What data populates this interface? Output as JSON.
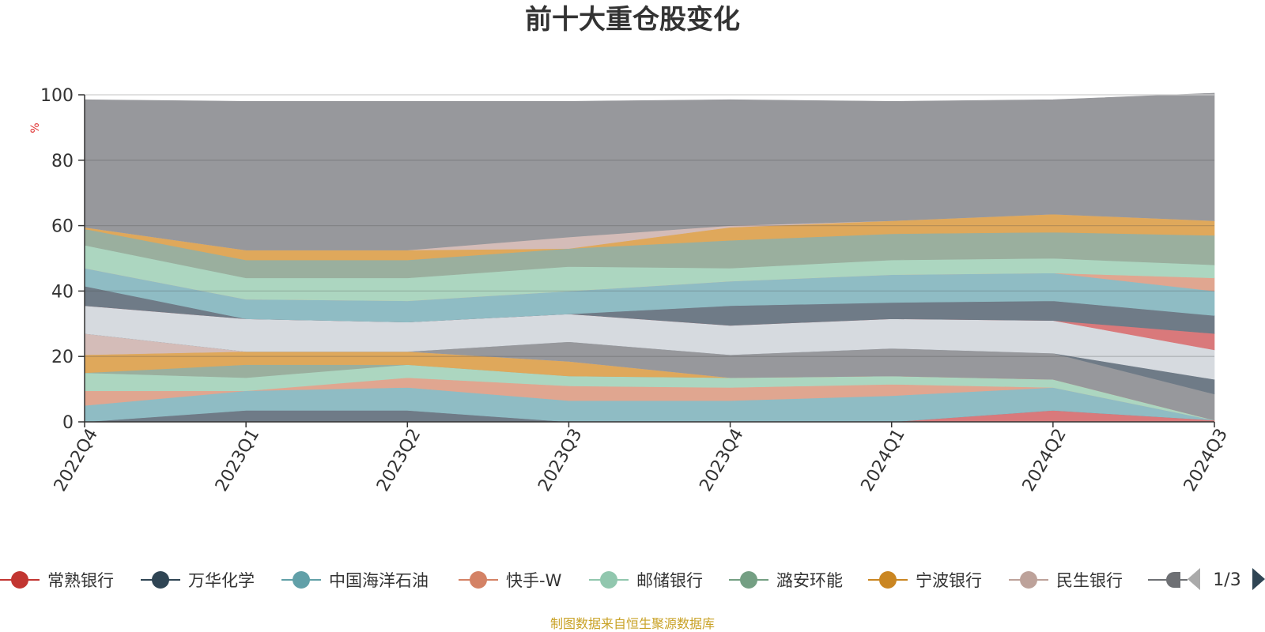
{
  "chart_data": {
    "type": "area",
    "stacked": true,
    "title": "前十大重仓股变化",
    "ylabel": "%",
    "ylim": [
      0,
      100
    ],
    "yticks": [
      0,
      20,
      40,
      60,
      80,
      100
    ],
    "grid": true,
    "legend_position": "bottom",
    "categories": [
      "2022Q4",
      "2023Q1",
      "2023Q2",
      "2023Q3",
      "2023Q4",
      "2024Q1",
      "2024Q2",
      "2024Q3"
    ],
    "series": [
      {
        "color": "#d9797b",
        "values": [
          0,
          0,
          0,
          0,
          0,
          0,
          3.5,
          0.5
        ]
      },
      {
        "color": "#6f7b87",
        "values": [
          0,
          3.5,
          3.5,
          0,
          0,
          0,
          0,
          0
        ]
      },
      {
        "color": "#8fbcc4",
        "values": [
          5,
          6,
          7,
          6.5,
          6.5,
          8,
          7,
          0
        ]
      },
      {
        "color": "#e0a690",
        "values": [
          4.5,
          0,
          3,
          4.5,
          4,
          3.5,
          0,
          0
        ]
      },
      {
        "color": "#acd6c0",
        "values": [
          5.5,
          4,
          4,
          3,
          3,
          2.5,
          2.5,
          0
        ]
      },
      {
        "color": "#9aaf9e",
        "values": [
          0,
          4,
          0,
          0,
          0,
          0,
          0,
          0
        ]
      },
      {
        "color": "#dfa85b",
        "values": [
          5.5,
          4,
          4,
          4.5,
          0,
          0,
          0,
          0
        ]
      },
      {
        "color": "#d4bcb8",
        "values": [
          6.5,
          0,
          0,
          0,
          0,
          0,
          0,
          0
        ]
      },
      {
        "color": "#97989c",
        "values": [
          0,
          0,
          0,
          6,
          7,
          8.5,
          8,
          8
        ]
      },
      {
        "color": "#6f7b87",
        "values": [
          0,
          0,
          0,
          0,
          0,
          0,
          0,
          4.5
        ]
      },
      {
        "color": "#d6dadf",
        "values": [
          8.5,
          10,
          9,
          8.5,
          9,
          9,
          10,
          9
        ]
      },
      {
        "color": "#d9797b",
        "values": [
          0,
          0,
          0,
          0,
          0,
          0,
          0,
          5
        ]
      },
      {
        "color": "#6f7b87",
        "values": [
          6,
          0,
          0,
          0,
          6,
          5,
          6,
          5.5
        ]
      },
      {
        "color": "#8fbcc4",
        "values": [
          5.5,
          6,
          6.5,
          7,
          7.5,
          8.5,
          8.5,
          7.5
        ]
      },
      {
        "color": "#e0a690",
        "values": [
          0,
          0,
          0,
          0,
          0,
          0,
          0,
          4
        ]
      },
      {
        "color": "#acd6c0",
        "values": [
          7,
          6.5,
          7,
          7.5,
          4,
          4.5,
          4.5,
          4
        ]
      },
      {
        "color": "#9aaf9e",
        "values": [
          5,
          5.5,
          5.5,
          5.5,
          8.5,
          8,
          8,
          9
        ]
      },
      {
        "color": "#dfa85b",
        "values": [
          0.5,
          3,
          3,
          0,
          4,
          4,
          5.5,
          4.5
        ]
      },
      {
        "color": "#d4bcb8",
        "values": [
          0,
          0,
          0,
          3.5,
          0.5,
          0,
          0,
          0
        ]
      },
      {
        "color": "#97989c",
        "values": [
          39,
          45.5,
          45.5,
          41.5,
          38.5,
          36.5,
          35,
          39
        ]
      }
    ],
    "legend": [
      {
        "name": "常熟银行",
        "color": "#c23531"
      },
      {
        "name": "万华化学",
        "color": "#2f4554"
      },
      {
        "name": "中国海洋石油",
        "color": "#61a0a8"
      },
      {
        "name": "快手-W",
        "color": "#d48265"
      },
      {
        "name": "邮储银行",
        "color": "#91c7ae"
      },
      {
        "name": "潞安环能",
        "color": "#749f83"
      },
      {
        "name": "宁波银行",
        "color": "#ca8622"
      },
      {
        "name": "民生银行",
        "color": "#bda29a"
      },
      {
        "name": "",
        "color": "#6e7074"
      }
    ],
    "pager": "1/3"
  },
  "source_note": "制图数据来自恒生聚源数据库"
}
